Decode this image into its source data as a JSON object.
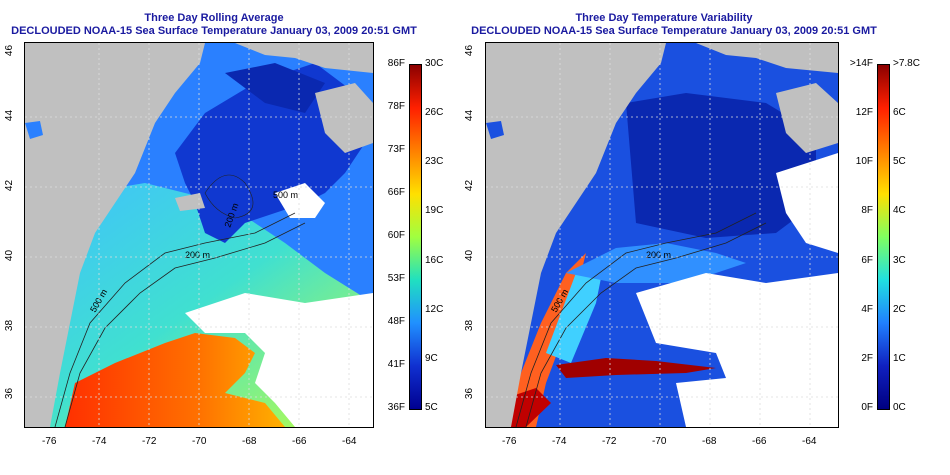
{
  "left": {
    "title_line1": "Three Day Rolling Average",
    "title_line2": "DECLOUDED NOAA-15 Sea Surface Temperature January 03, 2009 20:51 GMT",
    "colorbar_f": [
      "86F",
      "78F",
      "73F",
      "66F",
      "60F",
      "53F",
      "48F",
      "41F",
      "36F"
    ],
    "colorbar_c": [
      "30C",
      "26C",
      "23C",
      "19C",
      "16C",
      "12C",
      "9C",
      "5C"
    ],
    "contour_labels": [
      "200 m",
      "500 m",
      "200 m",
      "500 m"
    ]
  },
  "right": {
    "title_line1": "Three Day Temperature Variability",
    "title_line2": "DECLOUDED NOAA-15 Sea Surface Temperature January 03, 2009 20:51 GMT",
    "colorbar_f": [
      ">14F",
      "12F",
      "10F",
      "8F",
      "6F",
      "4F",
      "2F",
      "0F"
    ],
    "colorbar_c": [
      ">7.8C",
      "6C",
      "5C",
      "4C",
      "3C",
      "2C",
      "1C",
      "0C"
    ],
    "contour_labels": [
      "200 m",
      "500 m"
    ]
  },
  "x_ticks": [
    "-76",
    "-74",
    "-72",
    "-70",
    "-68",
    "-66",
    "-64"
  ],
  "y_ticks": [
    "46",
    "44",
    "42",
    "40",
    "38",
    "36"
  ],
  "colors": {
    "land": "#c0c0c0",
    "title": "#1a1aa0",
    "sst_scale": [
      "#8b0000",
      "#ff2000",
      "#ff8000",
      "#ffe000",
      "#a0ff40",
      "#20e0c0",
      "#2090ff",
      "#1030d0",
      "#000090"
    ],
    "var_scale": [
      "#8b0000",
      "#ff2000",
      "#ff8000",
      "#ffe000",
      "#80ff60",
      "#20e0e0",
      "#2080ff",
      "#1020c0",
      "#000080"
    ]
  }
}
